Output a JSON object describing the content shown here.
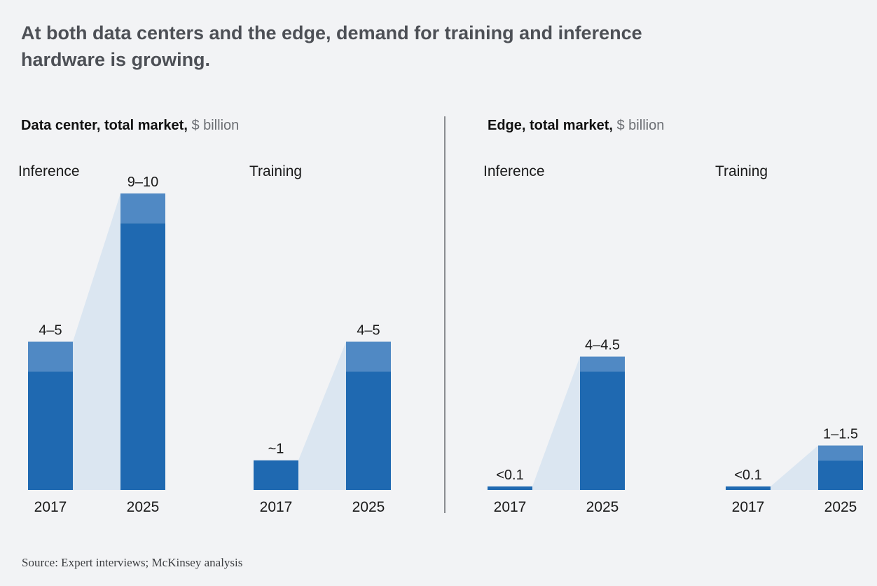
{
  "title": "At both data centers and the edge, demand for training and inference hardware is growing.",
  "source": "Source: Expert interviews; McKinsey analysis",
  "colors": {
    "bar": "#1f69b1",
    "range": "#5089c4",
    "connector": "#dbe6f1",
    "divider": "#8a8c90"
  },
  "panels": [
    {
      "title_bold": "Data center, total market,",
      "title_unit": "$ billion"
    },
    {
      "title_bold": "Edge, total market,",
      "title_unit": "$ billion"
    }
  ],
  "chart_data": [
    {
      "type": "bar",
      "title": "Data center, total market, $ billion",
      "subtitle": "Inference",
      "categories": [
        "2017",
        "2025"
      ],
      "low": [
        4,
        9
      ],
      "high": [
        5,
        10
      ],
      "labels": [
        "4–5",
        "9–10"
      ],
      "ylim": [
        0,
        10
      ]
    },
    {
      "type": "bar",
      "title": "Data center, total market, $ billion",
      "subtitle": "Training",
      "categories": [
        "2017",
        "2025"
      ],
      "low": [
        1,
        4
      ],
      "high": [
        1,
        5
      ],
      "labels": [
        "~1",
        "4–5"
      ],
      "ylim": [
        0,
        10
      ]
    },
    {
      "type": "bar",
      "title": "Edge, total market, $ billion",
      "subtitle": "Inference",
      "categories": [
        "2017",
        "2025"
      ],
      "low": [
        0.1,
        4
      ],
      "high": [
        0.1,
        4.5
      ],
      "labels": [
        "<0.1",
        "4–4.5"
      ],
      "ylim": [
        0,
        10
      ]
    },
    {
      "type": "bar",
      "title": "Edge, total market, $ billion",
      "subtitle": "Training",
      "categories": [
        "2017",
        "2025"
      ],
      "low": [
        0.1,
        1
      ],
      "high": [
        0.1,
        1.5
      ],
      "labels": [
        "<0.1",
        "1–1.5"
      ],
      "ylim": [
        0,
        10
      ]
    }
  ]
}
